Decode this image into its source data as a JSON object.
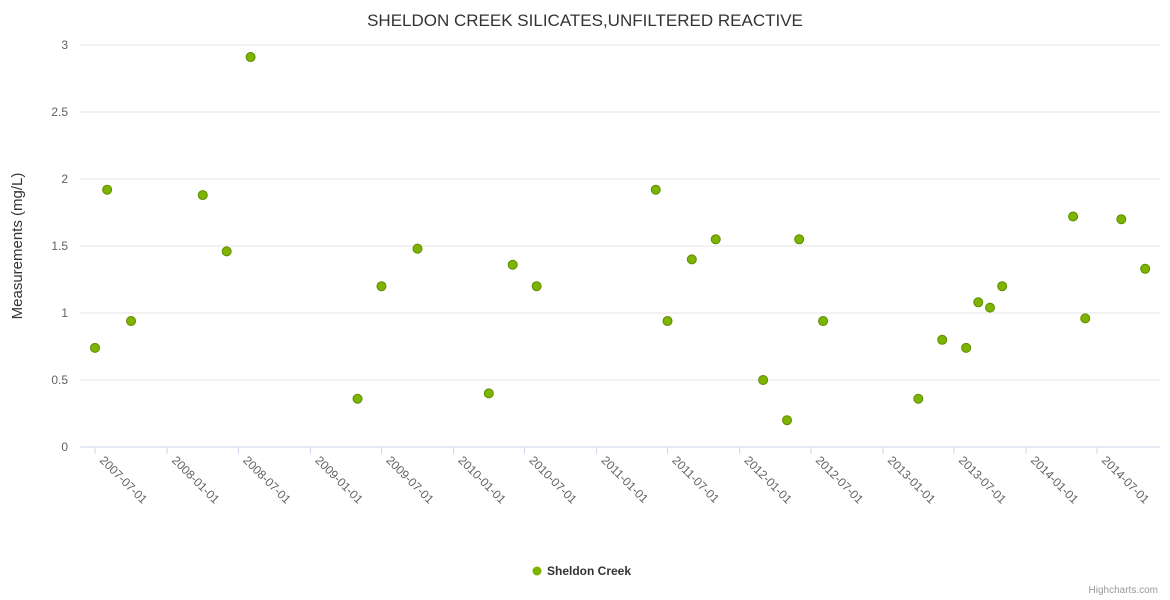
{
  "title": "SHELDON CREEK SILICATES,UNFILTERED REACTIVE",
  "credits": "Highcharts.com",
  "legend": {
    "items": [
      {
        "label": "Sheldon Creek",
        "marker_color": "#7cb400"
      }
    ]
  },
  "chart_data": {
    "type": "scatter",
    "title": "SHELDON CREEK SILICATES,UNFILTERED REACTIVE",
    "xlabel": "",
    "ylabel": "Measurements (mg/L)",
    "ylim": [
      0,
      3
    ],
    "yticks": [
      0,
      0.5,
      1,
      1.5,
      2,
      2.5,
      3
    ],
    "xtick_labels": [
      "2007-07-01",
      "2008-01-01",
      "2008-07-01",
      "2009-01-01",
      "2009-07-01",
      "2010-01-01",
      "2010-07-01",
      "2011-01-01",
      "2011-07-01",
      "2012-01-01",
      "2012-07-01",
      "2013-01-01",
      "2013-07-01",
      "2014-01-01",
      "2014-07-01"
    ],
    "grid": true,
    "grid_color": "#e6e6e6",
    "axis_color": "#ccd6eb",
    "label_color": "#606060",
    "title_color": "#333333",
    "legend_position": "bottom",
    "series": [
      {
        "name": "Sheldon Creek",
        "color": "#7cb400",
        "points": [
          [
            "2007-07",
            0.74
          ],
          [
            "2007-08",
            1.92
          ],
          [
            "2007-10",
            0.94
          ],
          [
            "2008-04",
            1.88
          ],
          [
            "2008-06",
            1.46
          ],
          [
            "2008-08",
            2.91
          ],
          [
            "2009-05",
            0.36
          ],
          [
            "2009-07",
            1.2
          ],
          [
            "2009-10",
            1.48
          ],
          [
            "2010-04",
            0.4
          ],
          [
            "2010-06",
            1.36
          ],
          [
            "2010-08",
            1.2
          ],
          [
            "2011-06",
            1.92
          ],
          [
            "2011-07",
            0.94
          ],
          [
            "2011-09",
            1.4
          ],
          [
            "2011-11",
            1.55
          ],
          [
            "2012-03",
            0.5
          ],
          [
            "2012-05",
            0.2
          ],
          [
            "2012-06",
            1.55
          ],
          [
            "2012-08",
            0.94
          ],
          [
            "2013-04",
            0.36
          ],
          [
            "2013-06",
            0.8
          ],
          [
            "2013-08",
            0.74
          ],
          [
            "2013-09",
            1.08
          ],
          [
            "2013-10",
            1.04
          ],
          [
            "2013-11",
            1.2
          ],
          [
            "2014-05",
            1.72
          ],
          [
            "2014-06",
            0.96
          ],
          [
            "2014-09",
            1.7
          ],
          [
            "2014-11",
            1.33
          ]
        ]
      }
    ]
  }
}
